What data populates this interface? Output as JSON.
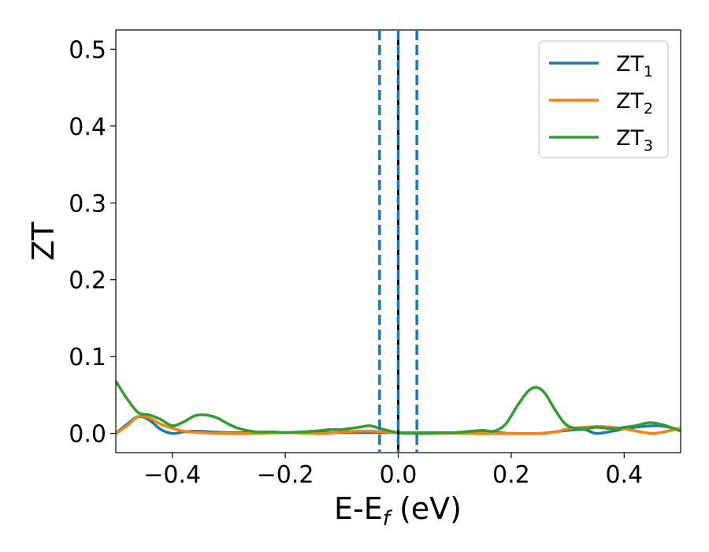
{
  "chart_data": {
    "type": "line",
    "title": "",
    "xlabel": {
      "main": "E-E",
      "sub": "f",
      "suffix": " (eV)"
    },
    "ylabel": "ZT",
    "xlim": [
      -0.5,
      0.5
    ],
    "ylim": [
      -0.025,
      0.525
    ],
    "xticks": [
      -0.4,
      -0.2,
      0.0,
      0.2,
      0.4
    ],
    "xtick_labels": [
      "−0.4",
      "−0.2",
      "0.0",
      "0.2",
      "0.4"
    ],
    "yticks": [
      0.0,
      0.1,
      0.2,
      0.3,
      0.4,
      0.5
    ],
    "ytick_labels": [
      "0.0",
      "0.1",
      "0.2",
      "0.3",
      "0.4",
      "0.5"
    ],
    "grid": false,
    "legend_position": "top-right",
    "vlines": [
      {
        "x": -0.033,
        "style": "dashed",
        "color": "#1f77b4"
      },
      {
        "x": 0.0,
        "style": "solid",
        "color": "#000000"
      },
      {
        "x": 0.0,
        "style": "dashed",
        "color": "#1f77b4"
      },
      {
        "x": 0.033,
        "style": "dashed",
        "color": "#1f77b4"
      }
    ],
    "series": [
      {
        "name": "ZT",
        "name_sub": "1",
        "color": "#1f77b4",
        "x": [
          -0.5,
          -0.48,
          -0.46,
          -0.44,
          -0.42,
          -0.4,
          -0.38,
          -0.36,
          -0.33,
          -0.3,
          -0.25,
          -0.2,
          -0.15,
          -0.1,
          -0.05,
          0.0,
          0.05,
          0.1,
          0.15,
          0.18,
          0.2,
          0.25,
          0.3,
          0.33,
          0.35,
          0.38,
          0.4,
          0.43,
          0.46,
          0.48,
          0.5
        ],
        "y": [
          0.0,
          0.012,
          0.022,
          0.017,
          0.005,
          0.0,
          0.002,
          0.003,
          0.002,
          0.001,
          0.001,
          0.001,
          0.001,
          0.001,
          0.001,
          0.001,
          0.001,
          0.001,
          0.002,
          0.001,
          0.0,
          0.0,
          0.004,
          0.005,
          0.0,
          0.003,
          0.006,
          0.009,
          0.01,
          0.008,
          0.004
        ]
      },
      {
        "name": "ZT",
        "name_sub": "2",
        "color": "#ff7f0e",
        "x": [
          -0.5,
          -0.48,
          -0.46,
          -0.44,
          -0.42,
          -0.4,
          -0.38,
          -0.35,
          -0.3,
          -0.25,
          -0.2,
          -0.15,
          -0.13,
          -0.1,
          -0.05,
          0.0,
          0.05,
          0.1,
          0.15,
          0.2,
          0.25,
          0.28,
          0.3,
          0.33,
          0.36,
          0.4,
          0.43,
          0.45,
          0.47,
          0.5
        ],
        "y": [
          0.0,
          0.01,
          0.022,
          0.02,
          0.012,
          0.007,
          0.003,
          0.001,
          0.0,
          0.0,
          0.001,
          0.0,
          0.0,
          0.002,
          0.003,
          0.001,
          0.0,
          0.0,
          0.0,
          0.0,
          0.0,
          0.002,
          0.006,
          0.008,
          0.009,
          0.006,
          0.002,
          0.0,
          0.002,
          0.007
        ]
      },
      {
        "name": "ZT",
        "name_sub": "3",
        "color": "#2ca02c",
        "x": [
          -0.5,
          -0.48,
          -0.46,
          -0.44,
          -0.42,
          -0.4,
          -0.38,
          -0.36,
          -0.34,
          -0.32,
          -0.3,
          -0.28,
          -0.25,
          -0.22,
          -0.2,
          -0.15,
          -0.12,
          -0.1,
          -0.07,
          -0.05,
          -0.03,
          0.0,
          0.03,
          0.05,
          0.08,
          0.1,
          0.13,
          0.15,
          0.17,
          0.19,
          0.21,
          0.23,
          0.245,
          0.26,
          0.28,
          0.3,
          0.33,
          0.35,
          0.38,
          0.4,
          0.42,
          0.445,
          0.47,
          0.5
        ],
        "y": [
          0.068,
          0.045,
          0.027,
          0.024,
          0.018,
          0.01,
          0.015,
          0.023,
          0.024,
          0.02,
          0.012,
          0.006,
          0.002,
          0.002,
          0.001,
          0.003,
          0.005,
          0.005,
          0.008,
          0.01,
          0.006,
          0.001,
          0.0,
          0.0,
          0.001,
          0.001,
          0.003,
          0.004,
          0.003,
          0.012,
          0.035,
          0.055,
          0.06,
          0.052,
          0.028,
          0.01,
          0.006,
          0.008,
          0.006,
          0.008,
          0.01,
          0.014,
          0.011,
          0.003
        ]
      }
    ]
  }
}
